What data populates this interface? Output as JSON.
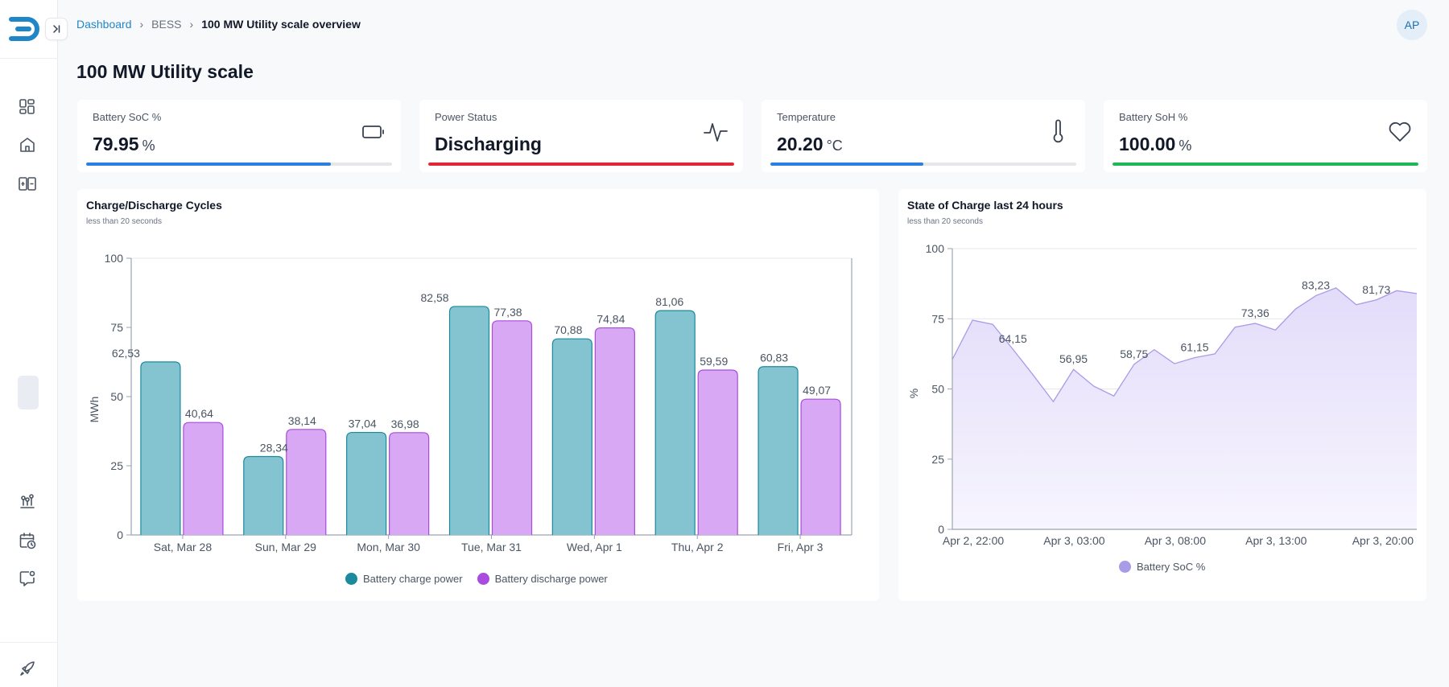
{
  "breadcrumb": {
    "home": "Dashboard",
    "section": "BESS",
    "current": "100 MW Utility scale overview"
  },
  "user": {
    "initials": "AP"
  },
  "page": {
    "title": "100 MW Utility scale"
  },
  "kpis": [
    {
      "label": "Battery SoC %",
      "value": "79.95",
      "unit": "%",
      "fill_fraction": 0.8,
      "color": "#2b7fe0",
      "icon": "battery-icon"
    },
    {
      "label": "Power Status",
      "value": "Discharging",
      "unit": "",
      "fill_fraction": 1.0,
      "color": "#e32636",
      "icon": "activity-icon"
    },
    {
      "label": "Temperature",
      "value": "20.20",
      "unit": "°C",
      "fill_fraction": 0.5,
      "color": "#2b7fe0",
      "icon": "thermometer-icon"
    },
    {
      "label": "Battery SoH %",
      "value": "100.00",
      "unit": "%",
      "fill_fraction": 1.0,
      "color": "#1db954",
      "icon": "heart-icon"
    }
  ],
  "cycles_card": {
    "title": "Charge/Discharge Cycles",
    "subtitle": "less than 20 seconds"
  },
  "soc_card": {
    "title": "State of Charge last 24 hours",
    "subtitle": "less than 20 seconds"
  },
  "chart_data": [
    {
      "type": "bar",
      "ylabel": "MWh",
      "ylim": [
        0,
        100
      ],
      "yticks": [
        "0",
        "25",
        "50",
        "75",
        "100"
      ],
      "categories": [
        "Sat, Mar 28",
        "Sun, Mar 29",
        "Mon, Mar 30",
        "Tue, Mar 31",
        "Wed, Apr 1",
        "Thu, Apr 2",
        "Fri, Apr 3"
      ],
      "series": [
        {
          "name": "Battery charge power",
          "values": [
            62.53,
            28.34,
            37.04,
            82.58,
            70.88,
            81.06,
            60.83
          ],
          "labels": [
            "62,53",
            "28,34",
            "37,04",
            "82,58",
            "70,88",
            "81,06",
            "60,83"
          ],
          "color": "#1b8a9c",
          "fill": "#84c4d0"
        },
        {
          "name": "Battery discharge power",
          "values": [
            40.64,
            38.14,
            36.98,
            77.38,
            74.84,
            59.59,
            49.07
          ],
          "labels": [
            "40,64",
            "38,14",
            "36,98",
            "77,38",
            "74,84",
            "59,59",
            "49,07"
          ],
          "color": "#a94bde",
          "fill": "#d8a8f5"
        }
      ],
      "legend": "bottom",
      "grid": false
    },
    {
      "type": "area",
      "ylabel": "%",
      "ylim": [
        0,
        100
      ],
      "yticks": [
        "0",
        "25",
        "50",
        "75",
        "100"
      ],
      "xticks": [
        "Apr 2, 22:00",
        "Apr 3, 03:00",
        "Apr 3, 08:00",
        "Apr 3, 13:00",
        "Apr 3, 20:00"
      ],
      "series": [
        {
          "name": "Battery SoC %",
          "values": [
            60.5,
            74.5,
            73,
            64.15,
            55,
            45.5,
            56.95,
            51,
            47.5,
            58.75,
            64,
            59,
            61.15,
            62.5,
            72,
            73.36,
            71,
            78.5,
            83.23,
            86,
            80,
            81.73,
            85,
            84
          ],
          "labels": {
            "3": "64,15",
            "6": "56,95",
            "9": "58,75",
            "12": "61,15",
            "15": "73,36",
            "18": "83,23",
            "21": "81,73"
          },
          "color": "#a99be6",
          "fill": "#ebe6fb"
        }
      ],
      "legend": "bottom",
      "grid": true
    }
  ]
}
